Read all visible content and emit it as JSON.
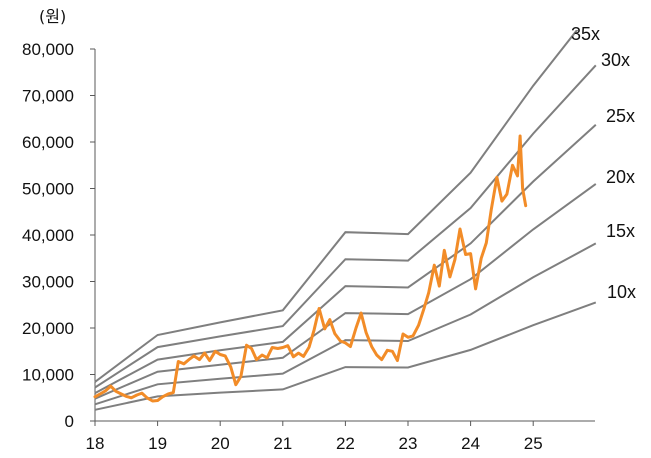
{
  "chart_data": {
    "type": "line",
    "unit_label": "(원)",
    "ylim": [
      0,
      80000
    ],
    "y_ticks": [
      0,
      10000,
      20000,
      30000,
      40000,
      50000,
      60000,
      70000,
      80000
    ],
    "y_tick_labels": [
      "0",
      "10,000",
      "20,000",
      "30,000",
      "40,000",
      "50,000",
      "60,000",
      "70,000",
      "80,000"
    ],
    "xlim": [
      18,
      26
    ],
    "x_ticks": [
      18,
      19,
      20,
      21,
      22,
      23,
      24,
      25
    ],
    "x_tick_labels": [
      "18",
      "19",
      "20",
      "21",
      "22",
      "23",
      "24",
      "25"
    ],
    "grid": false,
    "colors": {
      "price": "#F28C28",
      "band": "#7F7F7F",
      "axis": "#595959"
    },
    "bands": [
      {
        "name": "10x",
        "points": [
          [
            18,
            2400
          ],
          [
            19,
            5300
          ],
          [
            20,
            6100
          ],
          [
            21,
            6800
          ],
          [
            22,
            11600
          ],
          [
            23,
            11500
          ],
          [
            24,
            15300
          ],
          [
            25,
            20600
          ],
          [
            26,
            25500
          ]
        ]
      },
      {
        "name": "15x",
        "points": [
          [
            18,
            3600
          ],
          [
            19,
            7900
          ],
          [
            20,
            9100
          ],
          [
            21,
            10200
          ],
          [
            22,
            17400
          ],
          [
            23,
            17200
          ],
          [
            24,
            22900
          ],
          [
            25,
            30900
          ],
          [
            26,
            38200
          ]
        ]
      },
      {
        "name": "20x",
        "points": [
          [
            18,
            4800
          ],
          [
            19,
            10600
          ],
          [
            20,
            12100
          ],
          [
            21,
            13600
          ],
          [
            22,
            23200
          ],
          [
            23,
            23000
          ],
          [
            24,
            30500
          ],
          [
            25,
            41200
          ],
          [
            26,
            51000
          ]
        ]
      },
      {
        "name": "25x",
        "points": [
          [
            18,
            6000
          ],
          [
            19,
            13200
          ],
          [
            20,
            15200
          ],
          [
            21,
            17000
          ],
          [
            22,
            29000
          ],
          [
            23,
            28700
          ],
          [
            24,
            38200
          ],
          [
            25,
            51500
          ],
          [
            26,
            63700
          ]
        ]
      },
      {
        "name": "30x",
        "points": [
          [
            18,
            7200
          ],
          [
            19,
            15900
          ],
          [
            20,
            18200
          ],
          [
            21,
            20400
          ],
          [
            22,
            34800
          ],
          [
            23,
            34500
          ],
          [
            24,
            45800
          ],
          [
            25,
            61800
          ],
          [
            26,
            76500
          ]
        ]
      },
      {
        "name": "35x",
        "points": [
          [
            18,
            8400
          ],
          [
            19,
            18500
          ],
          [
            20,
            21200
          ],
          [
            21,
            23800
          ],
          [
            22,
            40600
          ],
          [
            23,
            40200
          ],
          [
            24,
            53400
          ],
          [
            25,
            72100
          ],
          [
            26,
            89200
          ]
        ]
      }
    ],
    "series": [
      {
        "points": [
          [
            18.0,
            5200
          ],
          [
            18.08,
            5800
          ],
          [
            18.17,
            6500
          ],
          [
            18.25,
            7500
          ],
          [
            18.33,
            6400
          ],
          [
            18.42,
            5800
          ],
          [
            18.5,
            5300
          ],
          [
            18.58,
            5000
          ],
          [
            18.67,
            5600
          ],
          [
            18.75,
            6000
          ],
          [
            18.83,
            5000
          ],
          [
            18.92,
            4300
          ],
          [
            19.0,
            4400
          ],
          [
            19.08,
            5200
          ],
          [
            19.17,
            5800
          ],
          [
            19.25,
            6100
          ],
          [
            19.33,
            12800
          ],
          [
            19.42,
            12300
          ],
          [
            19.5,
            13200
          ],
          [
            19.58,
            14000
          ],
          [
            19.67,
            13200
          ],
          [
            19.75,
            14600
          ],
          [
            19.83,
            13000
          ],
          [
            19.92,
            15000
          ],
          [
            20.0,
            14300
          ],
          [
            20.08,
            14000
          ],
          [
            20.17,
            11600
          ],
          [
            20.25,
            7800
          ],
          [
            20.33,
            9600
          ],
          [
            20.42,
            16300
          ],
          [
            20.5,
            15600
          ],
          [
            20.58,
            13200
          ],
          [
            20.67,
            14200
          ],
          [
            20.75,
            13600
          ],
          [
            20.83,
            15800
          ],
          [
            20.92,
            15600
          ],
          [
            21.0,
            15800
          ],
          [
            21.08,
            16200
          ],
          [
            21.17,
            13800
          ],
          [
            21.25,
            14600
          ],
          [
            21.33,
            13900
          ],
          [
            21.42,
            15900
          ],
          [
            21.5,
            19600
          ],
          [
            21.58,
            24200
          ],
          [
            21.67,
            19800
          ],
          [
            21.75,
            21800
          ],
          [
            21.83,
            18800
          ],
          [
            21.92,
            17200
          ],
          [
            22.0,
            16800
          ],
          [
            22.08,
            16000
          ],
          [
            22.17,
            20000
          ],
          [
            22.25,
            23200
          ],
          [
            22.33,
            19000
          ],
          [
            22.42,
            16000
          ],
          [
            22.5,
            14200
          ],
          [
            22.58,
            13200
          ],
          [
            22.67,
            15200
          ],
          [
            22.75,
            15000
          ],
          [
            22.83,
            13000
          ],
          [
            22.92,
            18700
          ],
          [
            23.0,
            18000
          ],
          [
            23.08,
            18300
          ],
          [
            23.17,
            20600
          ],
          [
            23.25,
            24000
          ],
          [
            23.33,
            27600
          ],
          [
            23.42,
            33500
          ],
          [
            23.5,
            29000
          ],
          [
            23.58,
            36700
          ],
          [
            23.67,
            31000
          ],
          [
            23.75,
            34700
          ],
          [
            23.83,
            41300
          ],
          [
            23.92,
            35800
          ],
          [
            24.0,
            36000
          ],
          [
            24.08,
            28400
          ],
          [
            24.17,
            35000
          ],
          [
            24.25,
            38300
          ],
          [
            24.33,
            45500
          ],
          [
            24.42,
            52400
          ],
          [
            24.5,
            47300
          ],
          [
            24.58,
            48800
          ],
          [
            24.67,
            55000
          ],
          [
            24.75,
            52700
          ],
          [
            24.79,
            61300
          ],
          [
            24.83,
            50000
          ],
          [
            24.88,
            46300
          ]
        ]
      }
    ]
  }
}
